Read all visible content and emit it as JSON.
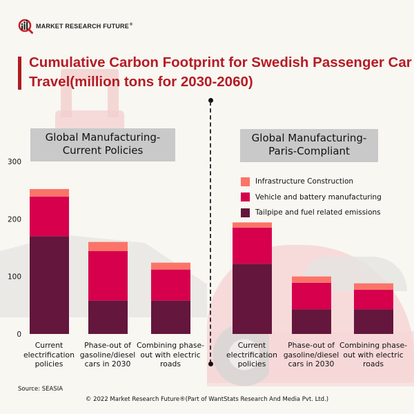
{
  "brand": {
    "logo_text": "MARKET RESEARCH FUTURE",
    "logo_registered": "®",
    "accent_color": "#b51c24"
  },
  "source": "Source: SEASIA",
  "copyright": "© 2022 Market Research Future®(Part of WantStats Research And Media Pvt. Ltd.)",
  "legend": [
    {
      "label": "Infrastructure Construction",
      "color": "#fb7468"
    },
    {
      "label": "Vehicle and battery manufacturing",
      "color": "#d6004d"
    },
    {
      "label": "Tailpipe and fuel related emissions",
      "color": "#64163c"
    }
  ],
  "chart_data": [
    {
      "type": "bar",
      "stacked": true,
      "title": "Cumulative Carbon Footprint for Swedish Passenger Car Travel(million tons for 2030-2060)",
      "subtitle": "Global Manufacturing- Current Policies",
      "categories": [
        "Current electrification policies",
        "Phase-out of gasoline/diesel cars in 2030",
        "Combining phase-out with electric roads"
      ],
      "series": [
        {
          "name": "Tailpipe and fuel related emissions",
          "values": [
            170,
            58,
            58
          ]
        },
        {
          "name": "Vehicle and battery manufacturing",
          "values": [
            69,
            86,
            54
          ]
        },
        {
          "name": "Infrastructure Construction",
          "values": [
            13,
            16,
            12
          ]
        }
      ],
      "yticks": [
        0,
        100,
        200,
        300
      ],
      "ylim": [
        0,
        300
      ],
      "xlabel": "",
      "ylabel": "",
      "grid": false,
      "legend_position": "right"
    },
    {
      "type": "bar",
      "stacked": true,
      "title": "Cumulative Carbon Footprint for Swedish Passenger Car Travel(million tons for 2030-2060)",
      "subtitle": "Global Manufacturing- Paris-Compliant",
      "categories": [
        "Current electrification policies",
        "Phase-out of gasoline/diesel cars in 2030",
        "Combining phase-out with electric roads"
      ],
      "series": [
        {
          "name": "Tailpipe and fuel related emissions",
          "values": [
            122,
            43,
            43
          ]
        },
        {
          "name": "Vehicle and battery manufacturing",
          "values": [
            63,
            46,
            34
          ]
        },
        {
          "name": "Infrastructure Construction",
          "values": [
            9,
            11,
            11
          ]
        }
      ],
      "ylim": [
        0,
        300
      ],
      "xlabel": "",
      "ylabel": "",
      "grid": false,
      "legend_position": "top-right"
    }
  ],
  "header": {
    "title": "Cumulative Carbon Footprint for Swedish Passenger Car Travel(million tons for 2030-2060)"
  },
  "panels": {
    "left_title": "Global Manufacturing- Current Policies",
    "right_title": "Global Manufacturing- Paris-Compliant"
  },
  "category_labels": [
    "Current electrification policies",
    "Phase-out of gasoline/diesel cars in 2030",
    "Combining phase-out with electric roads"
  ]
}
